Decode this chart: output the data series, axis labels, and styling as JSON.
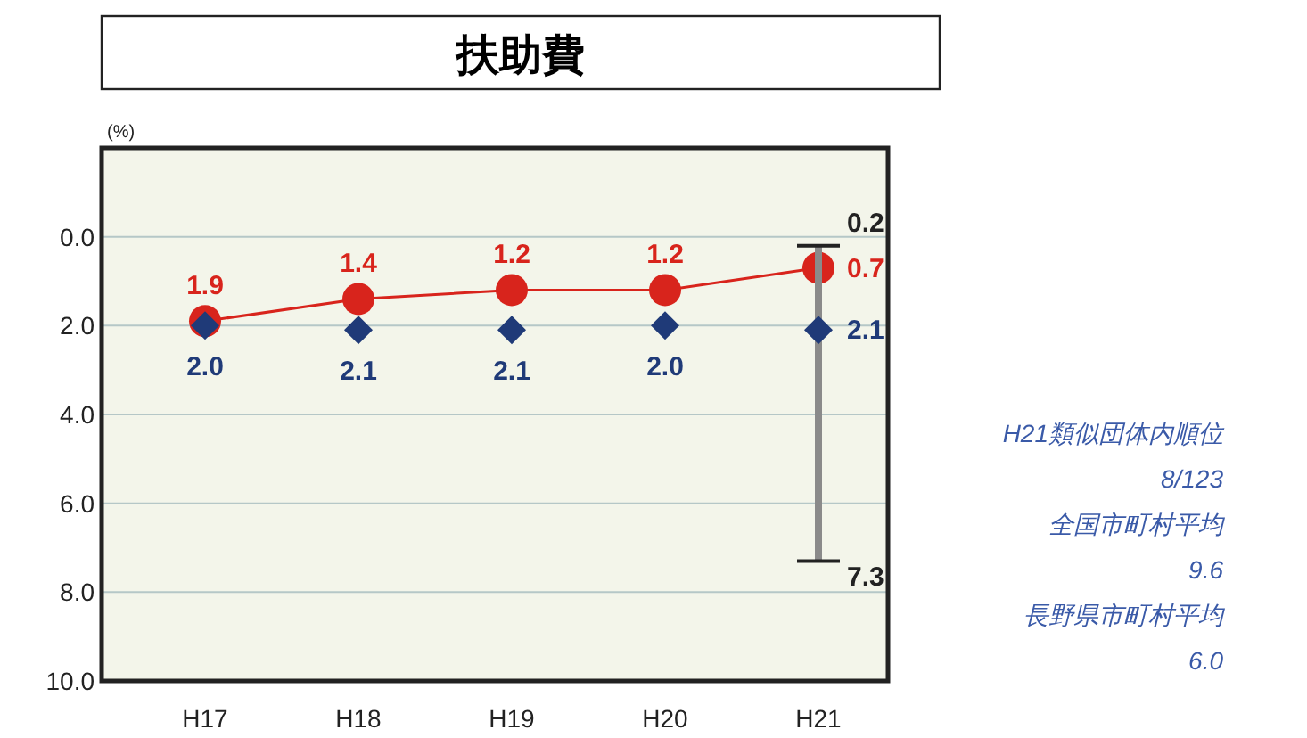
{
  "chart_data": {
    "type": "line",
    "title": "扶助費",
    "ylabel": "(%)",
    "categories": [
      "H17",
      "H18",
      "H19",
      "H20",
      "H21"
    ],
    "series": [
      {
        "color": "#d8241c",
        "marker": "circle",
        "values": [
          1.9,
          1.4,
          1.2,
          1.2,
          0.7
        ],
        "value_labels": [
          "1.9",
          "1.4",
          "1.2",
          "1.2",
          "0.7"
        ]
      },
      {
        "type": "scatter",
        "color": "#1f3a78",
        "marker": "diamond",
        "values": [
          2.0,
          2.1,
          2.1,
          2.0,
          2.1
        ],
        "value_labels": [
          "2.0",
          "2.1",
          "2.1",
          "2.0",
          "2.1"
        ],
        "errors": [
          null,
          null,
          null,
          null,
          [
            0.2,
            7.3
          ]
        ]
      }
    ],
    "ylim": [
      10,
      -2
    ],
    "yticks": [
      {
        "value": 0,
        "label": "0.0"
      },
      {
        "value": 2,
        "label": "2.0"
      },
      {
        "value": 4,
        "label": "4.0"
      },
      {
        "value": 6,
        "label": "6.0"
      },
      {
        "value": 8,
        "label": "8.0"
      },
      {
        "value": 10,
        "label": "10.0"
      }
    ],
    "grid": "y",
    "annotations": [
      {
        "text": "0.2",
        "x": "H21",
        "y": 0.2
      },
      {
        "text": "7.3",
        "x": "H21",
        "y": 7.3
      },
      "H21類似団体内順位",
      "8/123",
      "全国市町村平均",
      "9.6",
      "長野県市町村平均",
      "6.0"
    ]
  }
}
